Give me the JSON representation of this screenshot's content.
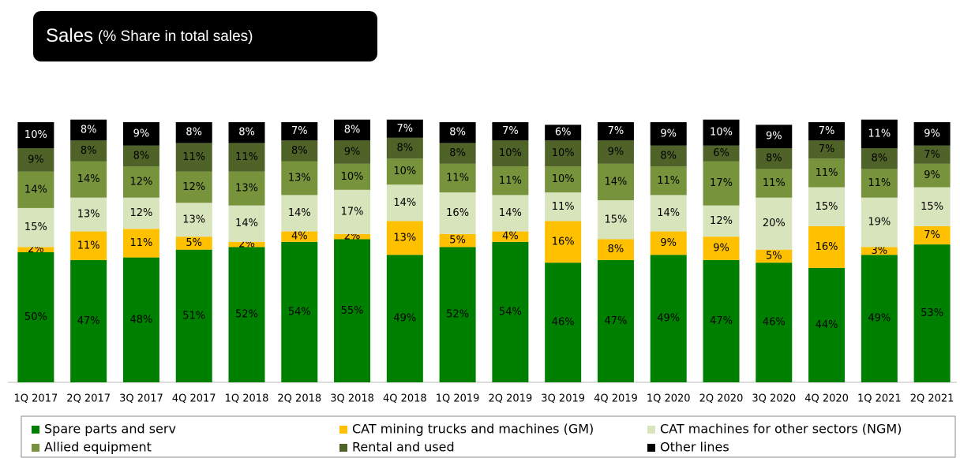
{
  "chart_data": {
    "type": "stacked_bar",
    "title": "Sales",
    "subtitle": "(% Share in total sales)",
    "categories": [
      "1Q 2017",
      "2Q 2017",
      "3Q 2017",
      "4Q 2017",
      "1Q 2018",
      "2Q 2018",
      "3Q 2018",
      "4Q 2018",
      "1Q 2019",
      "2Q 2019",
      "3Q 2019",
      "4Q 2019",
      "1Q 2020",
      "2Q 2020",
      "3Q 2020",
      "4Q 2020",
      "1Q 2021",
      "2Q 2021"
    ],
    "series": [
      {
        "name": "Spare parts and serv",
        "color": "#008000",
        "label_color": "#000000",
        "values": [
          50,
          47,
          48,
          51,
          52,
          54,
          55,
          49,
          52,
          54,
          46,
          47,
          49,
          47,
          46,
          44,
          49,
          53
        ],
        "value_labels": [
          "50%",
          "47%",
          "48%",
          "51%",
          "52%",
          "54%",
          "55%",
          "49%",
          "52%",
          "54%",
          "46%",
          "47%",
          "49%",
          "47%",
          "46%",
          "44%",
          "49%",
          "53%"
        ]
      },
      {
        "name": "CAT mining trucks and machines (GM)",
        "color": "#ffc000",
        "label_color": "#000000",
        "values": [
          2,
          11,
          11,
          5,
          2,
          4,
          2,
          13,
          5,
          4,
          16,
          8,
          9,
          9,
          5,
          16,
          3,
          7
        ],
        "value_labels": [
          "2%",
          "11%",
          "11%",
          "5%",
          "2%",
          "4%",
          "2%",
          "13%",
          "5%",
          "4%",
          "16%",
          "8%",
          "9%",
          "9%",
          "5%",
          "16%",
          "3%",
          "7%"
        ]
      },
      {
        "name": "CAT machines for other sectors (NGM)",
        "color": "#d8e4bc",
        "label_color": "#000000",
        "values": [
          15,
          13,
          12,
          13,
          14,
          14,
          17,
          14,
          16,
          14,
          11,
          15,
          14,
          12,
          20,
          15,
          19,
          15
        ],
        "value_labels": [
          "15%",
          "13%",
          "12%",
          "13%",
          "14%",
          "14%",
          "17%",
          "14%",
          "16%",
          "14%",
          "11%",
          "15%",
          "14%",
          "12%",
          "20%",
          "15%",
          "19%",
          "15%"
        ]
      },
      {
        "name": "Allied equipment",
        "color": "#77933c",
        "label_color": "#000000",
        "values": [
          14,
          14,
          12,
          12,
          13,
          13,
          10,
          10,
          11,
          11,
          10,
          14,
          11,
          17,
          11,
          11,
          11,
          9
        ],
        "value_labels": [
          "14%",
          "14%",
          "12%",
          "12%",
          "13%",
          "13%",
          "10%",
          "10%",
          "11%",
          "11%",
          "10%",
          "14%",
          "11%",
          "17%",
          "11%",
          "11%",
          "11%",
          "9%"
        ]
      },
      {
        "name": "Rental and used",
        "color": "#4f6228",
        "label_color": "#000000",
        "values": [
          9,
          8,
          8,
          11,
          11,
          8,
          9,
          8,
          8,
          10,
          10,
          9,
          8,
          6,
          8,
          7,
          8,
          7
        ],
        "value_labels": [
          "9%",
          "8%",
          "8%",
          "11%",
          "11%",
          "8%",
          "9%",
          "8%",
          "8%",
          "10%",
          "10%",
          "9%",
          "8%",
          "6%",
          "8%",
          "7%",
          "8%",
          "7%"
        ]
      },
      {
        "name": "Other lines",
        "color": "#000000",
        "label_color": "#ffffff",
        "values": [
          10,
          8,
          9,
          8,
          8,
          7,
          8,
          7,
          8,
          7,
          6,
          7,
          9,
          10,
          9,
          7,
          11,
          9
        ],
        "value_labels": [
          "10%",
          "8%",
          "9%",
          "8%",
          "8%",
          "7%",
          "8%",
          "7%",
          "8%",
          "7%",
          "6%",
          "7%",
          "9%",
          "10%",
          "9%",
          "7%",
          "11%",
          "9%"
        ]
      }
    ]
  }
}
